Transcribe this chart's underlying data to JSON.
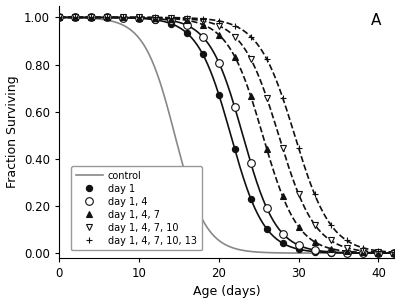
{
  "title": "A",
  "xlabel": "Age (days)",
  "ylabel": "Fraction Surviving",
  "xlim": [
    0,
    42
  ],
  "ylim": [
    -0.02,
    1.05
  ],
  "xticks": [
    0,
    10,
    20,
    30,
    40
  ],
  "yticks": [
    0.0,
    0.2,
    0.4,
    0.6,
    0.8,
    1.0
  ],
  "background_color": "#ffffff",
  "curves": {
    "control": {
      "label": "control",
      "color": "#888888",
      "linestyle": "-",
      "linewidth": 1.2,
      "marker": "none",
      "midpoint": 14.5,
      "steepness": 0.52
    },
    "day1": {
      "label": "day 1",
      "color": "#111111",
      "linestyle": "-",
      "linewidth": 1.2,
      "marker": "o",
      "markersize": 4.5,
      "markerfill": "#111111",
      "midpoint": 21.5,
      "steepness": 0.48
    },
    "day1_4": {
      "label": "day 1, 4",
      "color": "#111111",
      "linestyle": "-",
      "linewidth": 1.2,
      "marker": "o",
      "markersize": 5.5,
      "markerfill": "white",
      "midpoint": 23.0,
      "steepness": 0.48
    },
    "day1_4_7": {
      "label": "day 1, 4, 7",
      "color": "#111111",
      "linestyle": "--",
      "linewidth": 1.2,
      "marker": "^",
      "markersize": 4,
      "markerfill": "#111111",
      "midpoint": 25.5,
      "steepness": 0.46
    },
    "day1_4_7_10": {
      "label": "day 1, 4, 7, 10",
      "color": "#111111",
      "linestyle": "--",
      "linewidth": 1.2,
      "marker": "v",
      "markersize": 4,
      "markerfill": "white",
      "midpoint": 27.5,
      "steepness": 0.44
    },
    "day1_4_7_10_13": {
      "label": "day 1, 4, 7, 10, 13",
      "color": "#111111",
      "linestyle": "--",
      "linewidth": 1.2,
      "marker": "+",
      "markersize": 5,
      "markerfill": "#111111",
      "midpoint": 29.5,
      "steepness": 0.44
    }
  }
}
